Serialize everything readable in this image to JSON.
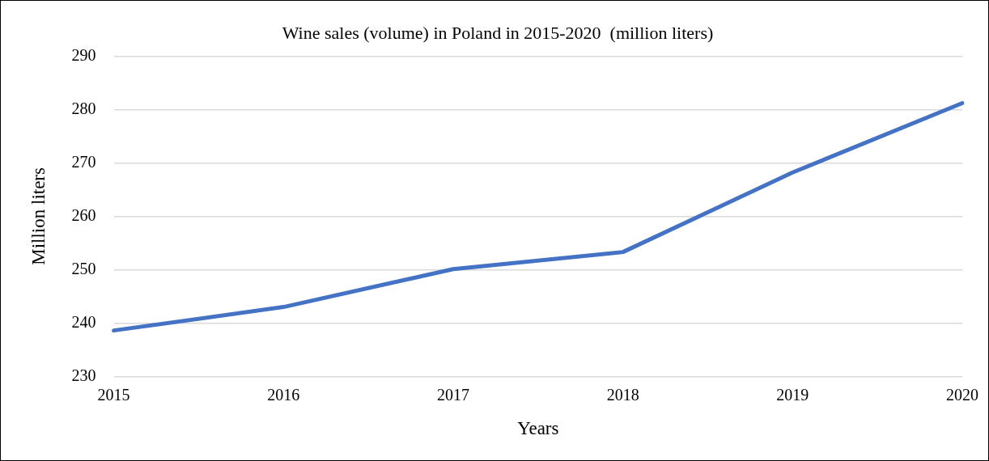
{
  "chart_data": {
    "type": "line",
    "title": "Wine sales (volume) in Poland in 2015-2020  (million liters)",
    "xlabel": "Years",
    "ylabel": "Million liters",
    "categories": [
      "2015",
      "2016",
      "2017",
      "2018",
      "2019",
      "2020"
    ],
    "series": [
      {
        "color": "#4472c4",
        "values": [
          238.6,
          243.0,
          250.1,
          253.3,
          268.2,
          281.2
        ]
      }
    ],
    "ylim": [
      230,
      290
    ],
    "yticks": [
      230,
      240,
      250,
      260,
      270,
      280,
      290
    ],
    "grid": "y",
    "legend": false,
    "marker": "none",
    "line_style": "solid"
  }
}
